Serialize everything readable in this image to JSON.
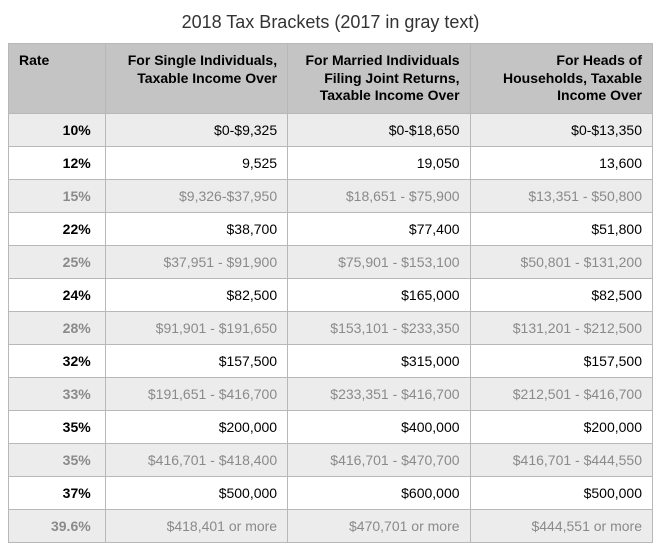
{
  "title": "2018 Tax Brackets (2017 in gray text)",
  "table": {
    "type": "table",
    "background_color": "#ffffff",
    "header_bg": "#c4c4c4",
    "row_alt_bg": "#ececec",
    "border_color": "#b8b8b8",
    "current_text_color": "#000000",
    "old_text_color": "#8a8a8a",
    "title_fontsize": 18,
    "cell_fontsize": 14,
    "columns": [
      "Rate",
      "For Single Individuals, Taxable Income Over",
      "For Married Individuals Filing Joint Returns, Taxable Income Over",
      "For Heads of Households, Taxable Income Over"
    ],
    "rows": [
      {
        "year": "2018",
        "rate": "10%",
        "single": "$0-$9,325",
        "married": "$0-$18,650",
        "hoh": "$0-$13,350"
      },
      {
        "year": "2018",
        "rate": "12%",
        "single": "9,525",
        "married": "19,050",
        "hoh": "13,600"
      },
      {
        "year": "2017",
        "rate": "15%",
        "single": "$9,326-$37,950",
        "married": "$18,651 - $75,900",
        "hoh": "$13,351 - $50,800"
      },
      {
        "year": "2018",
        "rate": "22%",
        "single": "$38,700",
        "married": "$77,400",
        "hoh": "$51,800"
      },
      {
        "year": "2017",
        "rate": "25%",
        "single": "$37,951 - $91,900",
        "married": "$75,901 - $153,100",
        "hoh": "$50,801 - $131,200"
      },
      {
        "year": "2018",
        "rate": "24%",
        "single": "$82,500",
        "married": "$165,000",
        "hoh": "$82,500"
      },
      {
        "year": "2017",
        "rate": "28%",
        "single": "$91,901 - $191,650",
        "married": "$153,101 - $233,350",
        "hoh": "$131,201 - $212,500"
      },
      {
        "year": "2018",
        "rate": "32%",
        "single": "$157,500",
        "married": "$315,000",
        "hoh": "$157,500"
      },
      {
        "year": "2017",
        "rate": "33%",
        "single": "$191,651 - $416,700",
        "married": "$233,351 - $416,700",
        "hoh": "$212,501 - $416,700"
      },
      {
        "year": "2018",
        "rate": "35%",
        "single": "$200,000",
        "married": "$400,000",
        "hoh": "$200,000"
      },
      {
        "year": "2017",
        "rate": "35%",
        "single": "$416,701 - $418,400",
        "married": "$416,701 - $470,700",
        "hoh": "$416,701 - $444,550"
      },
      {
        "year": "2018",
        "rate": "37%",
        "single": "$500,000",
        "married": "$600,000",
        "hoh": "$500,000"
      },
      {
        "year": "2017",
        "rate": "39.6%",
        "single": "$418,401 or more",
        "married": "$470,701 or more",
        "hoh": "$444,551 or more"
      }
    ]
  }
}
